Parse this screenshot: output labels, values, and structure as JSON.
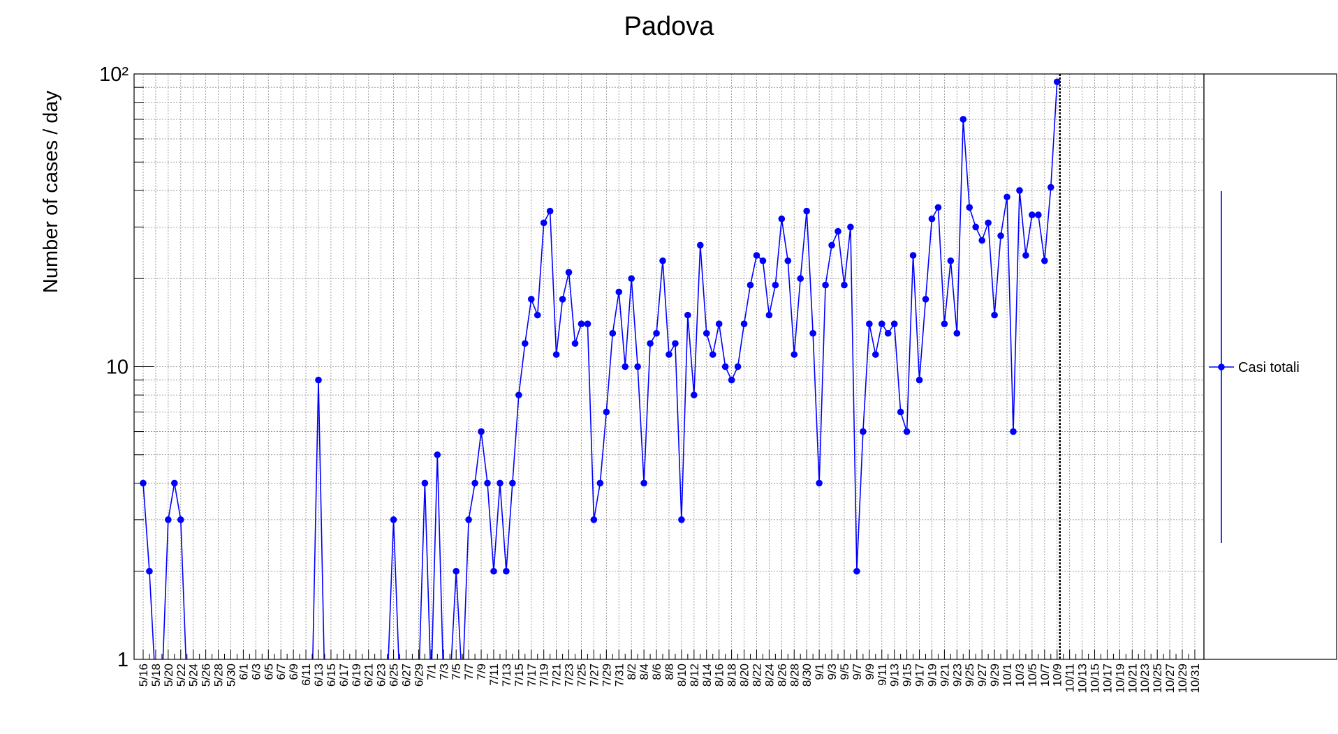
{
  "chart_data": {
    "type": "line",
    "title": "Padova",
    "y_label": "Number of cases / day",
    "log_y": true,
    "grid": true,
    "legend_position": "right",
    "color": "#0000ff",
    "ylim": [
      1,
      100
    ],
    "yticks": [
      1,
      10,
      {
        "value": 100,
        "label": "10²"
      }
    ],
    "categories": [
      "5/16",
      null,
      "5/18",
      null,
      "5/20",
      null,
      "5/22",
      null,
      "5/24",
      null,
      "5/26",
      null,
      "5/28",
      null,
      "5/30",
      null,
      "6/1",
      null,
      "6/3",
      null,
      "6/5",
      null,
      "6/7",
      null,
      "6/9",
      null,
      "6/11",
      null,
      "6/13",
      null,
      "6/15",
      null,
      "6/17",
      null,
      "6/19",
      null,
      "6/21",
      null,
      "6/23",
      null,
      "6/25",
      null,
      "6/27",
      null,
      "6/29",
      null,
      "7/1",
      null,
      "7/3",
      null,
      "7/5",
      null,
      "7/7",
      null,
      "7/9",
      null,
      "7/11",
      null,
      "7/13",
      null,
      "7/15",
      null,
      "7/17",
      null,
      "7/19",
      null,
      "7/21",
      null,
      "7/23",
      null,
      "7/25",
      null,
      "7/27",
      null,
      "7/29",
      null,
      "7/31",
      null,
      "8/2",
      null,
      "8/4",
      null,
      "8/6",
      null,
      "8/8",
      null,
      "8/10",
      null,
      "8/12",
      null,
      "8/14",
      null,
      "8/16",
      null,
      "8/18",
      null,
      "8/20",
      null,
      "8/22",
      null,
      "8/24",
      null,
      "8/26",
      null,
      "8/28",
      null,
      "8/30",
      null,
      "9/1",
      null,
      "9/3",
      null,
      "9/5",
      null,
      "9/7",
      null,
      "9/9",
      null,
      "9/11",
      null,
      "9/13",
      null,
      "9/15",
      null,
      "9/17",
      null,
      "9/19",
      null,
      "9/21",
      null,
      "9/23",
      null,
      "9/25",
      null,
      "9/27",
      null,
      "9/29",
      null,
      "10/1",
      null,
      "10/3",
      null,
      "10/5",
      null,
      "10/7",
      null,
      "10/9",
      null,
      "10/11",
      null,
      "10/13",
      null,
      "10/15",
      null,
      "10/17",
      null,
      "10/19",
      null,
      "10/21",
      null,
      "10/23",
      null,
      "10/25",
      null,
      "10/27",
      null,
      "10/29",
      null,
      "10/31"
    ],
    "series": [
      {
        "name": "Casi totali",
        "color": "#0000ff",
        "values": [
          4,
          2,
          0,
          0,
          3,
          4,
          3,
          0,
          0,
          0,
          0,
          0,
          0,
          0,
          0,
          0,
          0,
          0,
          0,
          0,
          0,
          0,
          0,
          0,
          0,
          0,
          0,
          0,
          9,
          0,
          0,
          0,
          0,
          0,
          0,
          0,
          0,
          0,
          0,
          0,
          3,
          0,
          0,
          0,
          0,
          4,
          0,
          5,
          0,
          0,
          2,
          0,
          3,
          4,
          6,
          4,
          2,
          4,
          2,
          4,
          8,
          12,
          17,
          15,
          31,
          34,
          11,
          17,
          21,
          12,
          14,
          14,
          3,
          4,
          7,
          13,
          18,
          10,
          20,
          10,
          4,
          12,
          13,
          23,
          11,
          12,
          3,
          15,
          8,
          26,
          13,
          11,
          14,
          10,
          9,
          10,
          14,
          19,
          24,
          23,
          15,
          19,
          32,
          23,
          11,
          20,
          34,
          13,
          4,
          19,
          26,
          29,
          19,
          30,
          2,
          6,
          14,
          11,
          14,
          13,
          14,
          7,
          6,
          24,
          9,
          17,
          32,
          35,
          14,
          23,
          13,
          70,
          35,
          30,
          27,
          31,
          15,
          28,
          38,
          6,
          40,
          24,
          33,
          33,
          23,
          41,
          94,
          null,
          null,
          null,
          null,
          null,
          null,
          null,
          null,
          null,
          null,
          null,
          null,
          null,
          null,
          null,
          null,
          null,
          null,
          null,
          null,
          null,
          null
        ]
      }
    ]
  }
}
